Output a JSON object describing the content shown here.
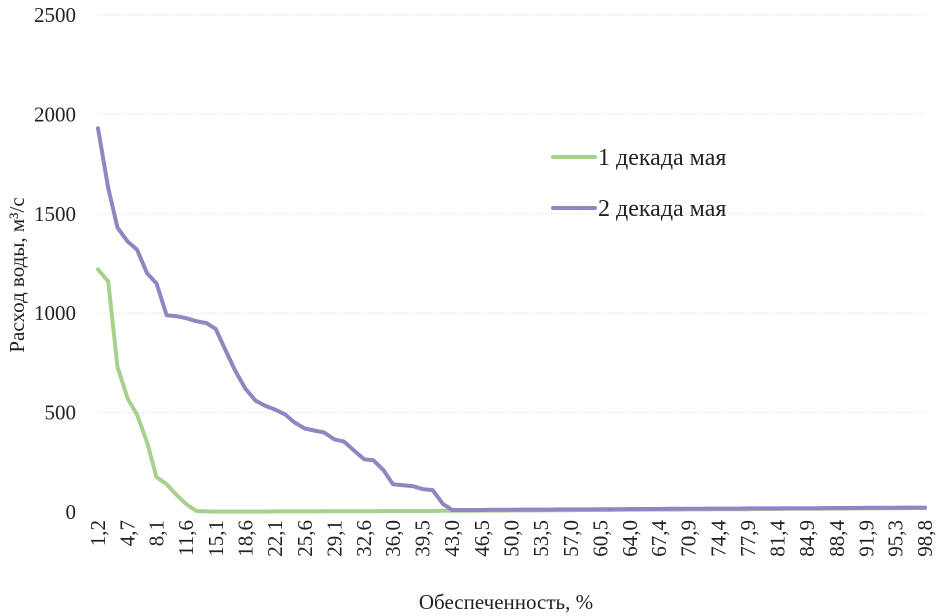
{
  "chart_data": {
    "type": "line",
    "title": "",
    "xlabel": "Обеспеченность, %",
    "ylabel": "Расход воды, м³/с",
    "ylim": [
      0,
      2500
    ],
    "yticks": [
      "0",
      "500",
      "1000",
      "1500",
      "2000",
      "2500"
    ],
    "grid": true,
    "legend_position": "upper-right",
    "x": [
      1.2,
      2.4,
      3.5,
      4.7,
      5.8,
      7.0,
      8.1,
      9.3,
      10.5,
      11.6,
      12.8,
      14.0,
      15.1,
      16.3,
      17.4,
      18.6,
      19.8,
      20.9,
      22.1,
      23.3,
      24.4,
      25.6,
      26.7,
      27.9,
      29.1,
      30.2,
      31.4,
      32.6,
      33.7,
      34.9,
      36.0,
      37.2,
      38.4,
      39.5,
      40.7,
      41.9,
      43.0,
      44.2,
      45.3,
      46.5,
      47.7,
      48.8,
      50.0,
      51.2,
      52.3,
      53.5,
      54.7,
      55.8,
      57.0,
      58.1,
      59.3,
      60.5,
      61.6,
      62.8,
      64.0,
      65.1,
      66.3,
      67.4,
      68.6,
      69.8,
      70.9,
      72.1,
      73.3,
      74.4,
      75.6,
      76.7,
      77.9,
      79.1,
      80.2,
      81.4,
      82.6,
      83.7,
      84.9,
      86.0,
      87.2,
      88.4,
      89.5,
      90.7,
      91.9,
      93.0,
      94.2,
      95.3,
      96.5,
      97.7,
      98.8
    ],
    "xtick_labels": [
      "1,2",
      "4,7",
      "8,1",
      "11,6",
      "15,1",
      "18,6",
      "22,1",
      "25,6",
      "29,1",
      "32,6",
      "36,0",
      "39,5",
      "43,0",
      "46,5",
      "50,0",
      "53,5",
      "57,0",
      "60,5",
      "64,0",
      "67,4",
      "70,9",
      "74,4",
      "77,9",
      "81,4",
      "84,9",
      "88,4",
      "91,9",
      "95,3",
      "98,8"
    ],
    "series": [
      {
        "name": "1 декада мая",
        "color": "#a9d18e",
        "values": [
          1220,
          1160,
          730,
          570,
          490,
          350,
          175,
          140,
          85,
          40,
          5,
          3,
          2,
          2,
          2,
          2,
          2,
          2,
          3,
          3,
          3,
          3,
          3,
          4,
          4,
          4,
          4,
          4,
          4,
          5,
          5,
          5,
          5,
          5,
          5,
          6,
          6,
          6,
          6,
          7,
          7,
          7,
          8,
          8,
          8,
          8,
          9,
          9,
          9,
          10,
          10,
          10,
          10,
          11,
          11,
          11,
          12,
          12,
          12,
          12,
          13,
          13,
          13,
          14,
          14,
          14,
          14,
          15,
          15,
          15,
          16,
          16,
          16,
          16,
          17,
          17,
          17,
          18,
          18,
          18,
          19,
          19,
          19,
          20,
          20
        ]
      },
      {
        "name": "2 декада мая",
        "color": "#8f86c2",
        "values": [
          1930,
          1630,
          1430,
          1360,
          1320,
          1200,
          1150,
          990,
          985,
          975,
          960,
          950,
          920,
          810,
          710,
          620,
          560,
          535,
          515,
          490,
          450,
          420,
          410,
          400,
          365,
          355,
          310,
          265,
          260,
          210,
          140,
          135,
          130,
          115,
          110,
          40,
          10,
          10,
          10,
          10,
          11,
          11,
          11,
          12,
          12,
          12,
          12,
          13,
          13,
          13,
          13,
          14,
          14,
          14,
          15,
          15,
          15,
          15,
          16,
          16,
          16,
          16,
          17,
          17,
          17,
          17,
          18,
          18,
          18,
          18,
          19,
          19,
          19,
          19,
          20,
          20,
          20,
          20,
          21,
          21,
          21,
          21,
          22,
          22,
          22
        ]
      }
    ]
  }
}
